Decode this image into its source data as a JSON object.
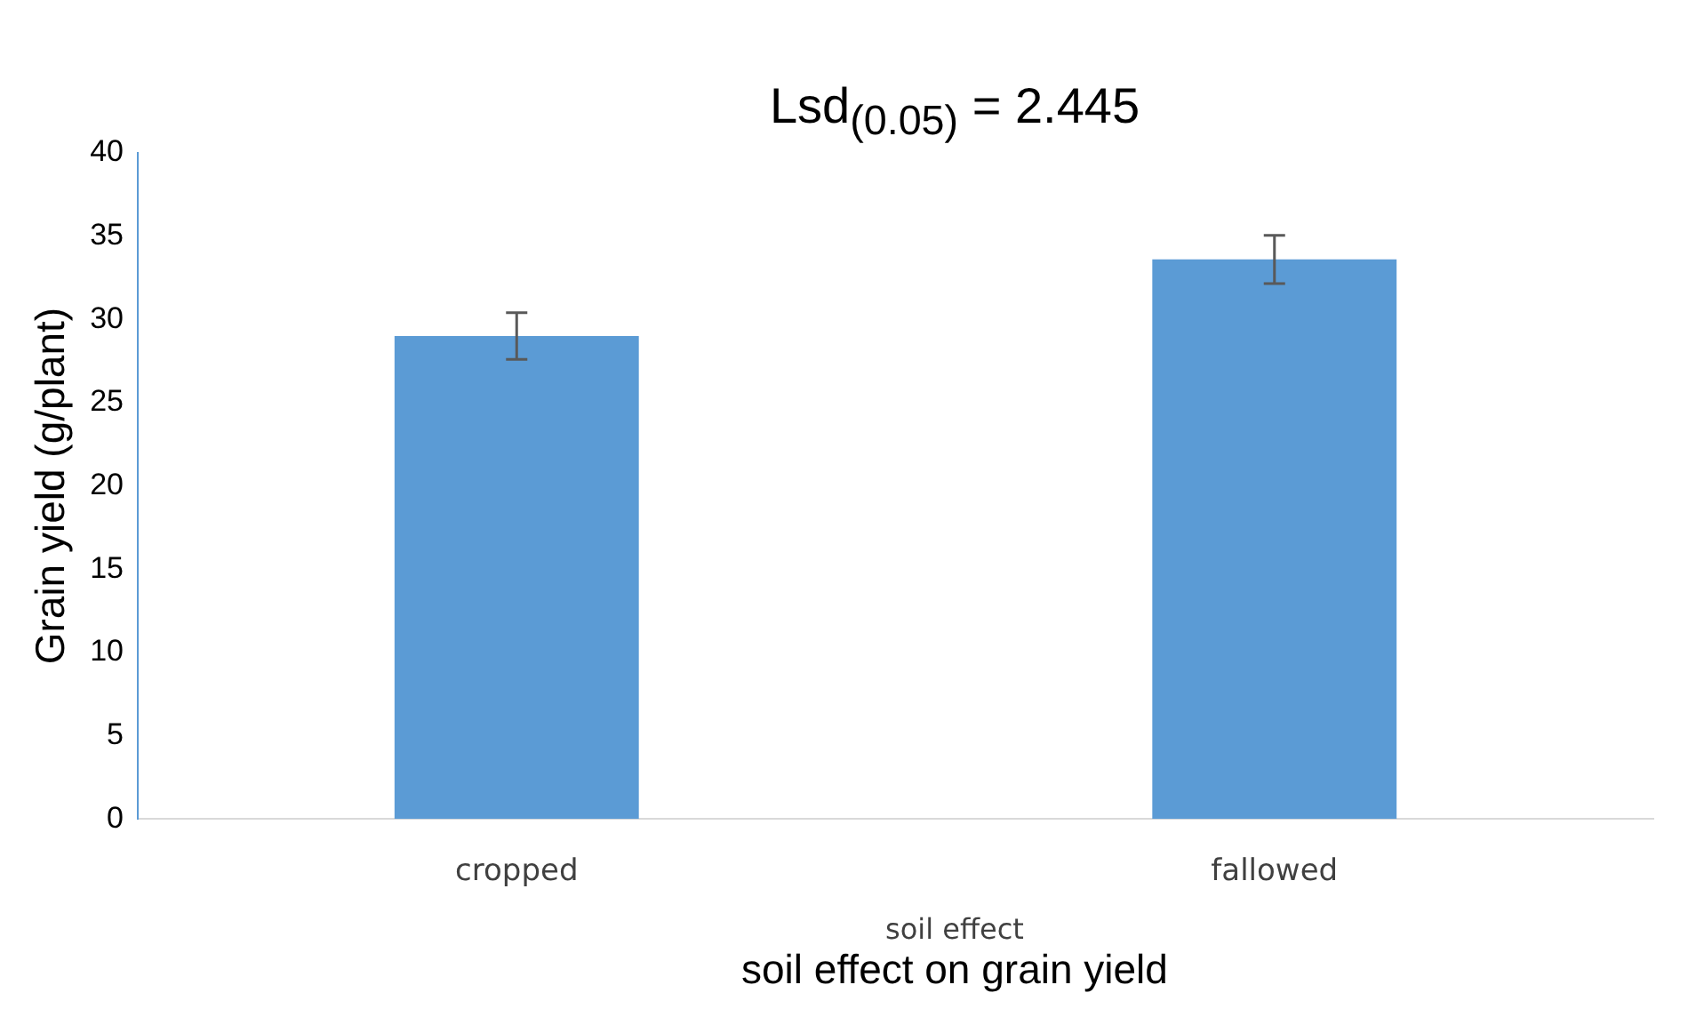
{
  "chart_data": {
    "type": "bar",
    "title": "Lsd$_{(0.05)}$ = 2.445",
    "ylabel": "Grain yield (g/plant)",
    "xlabel": "soil effect on grain yield",
    "annotations": [
      "soil effect"
    ],
    "categories": [
      "cropped",
      "fallowed"
    ],
    "values": [
      29,
      33.6
    ],
    "errors": [
      1.4,
      1.45
    ],
    "color": "#5b9bd5",
    "ylim": [
      0,
      40
    ],
    "yticks": [
      0,
      5,
      10,
      15,
      20,
      25,
      30,
      35,
      40
    ],
    "grid": false,
    "legend": false
  }
}
